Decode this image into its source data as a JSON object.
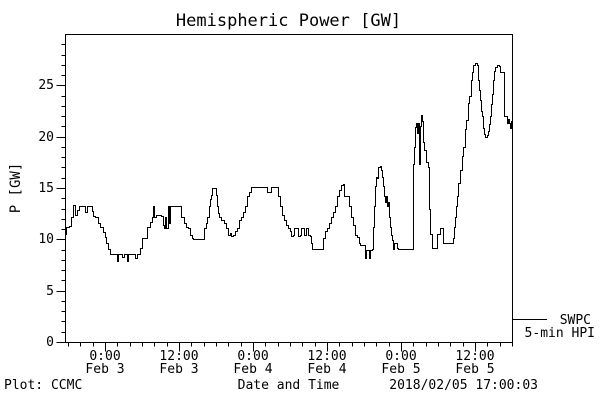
{
  "title": "Hemispheric Power [GW]",
  "footer": {
    "credit": "Plot: CCMC",
    "xlabel": "Date and Time",
    "timestamp": "2018/02/05 17:00:03"
  },
  "legend": {
    "source": "SWPC",
    "product": "5-min HPI"
  },
  "colors": {
    "line": "#000000",
    "frame": "#000000",
    "background": "#ffffff"
  },
  "chart_data": {
    "type": "line",
    "step_interpolation": true,
    "title": "Hemispheric Power [GW]",
    "xlabel": "Date and Time",
    "ylabel": "P [GW]",
    "x_units": "hours relative to 2018 Feb 3 00:00",
    "xlim": [
      -6.5,
      66
    ],
    "ylim": [
      0,
      30
    ],
    "grid": false,
    "legend_position": "right-outside-bottom",
    "yticks": {
      "major_values": [
        0,
        5,
        10,
        15,
        20,
        25
      ],
      "minor_step": 1
    },
    "xticks": {
      "minor_step_hours": 2,
      "major": [
        {
          "t": 0,
          "time": "0:00",
          "date": "Feb 3"
        },
        {
          "t": 12,
          "time": "12:00",
          "date": "Feb 3"
        },
        {
          "t": 24,
          "time": "0:00",
          "date": "Feb 4"
        },
        {
          "t": 36,
          "time": "12:00",
          "date": "Feb 4"
        },
        {
          "t": 48,
          "time": "0:00",
          "date": "Feb 5"
        },
        {
          "t": 60,
          "time": "12:00",
          "date": "Feb 5"
        }
      ]
    },
    "series": [
      {
        "name": "SWPC 5-min HPI",
        "color": "#000000",
        "points": [
          [
            -6.5,
            10.5
          ],
          [
            -6.3,
            11.2
          ],
          [
            -5.8,
            11.3
          ],
          [
            -5.5,
            12.2
          ],
          [
            -5.2,
            13.3
          ],
          [
            -4.9,
            12.4
          ],
          [
            -4.5,
            12.9
          ],
          [
            -4.2,
            13.2
          ],
          [
            -3.2,
            12.7
          ],
          [
            -3.0,
            13.2
          ],
          [
            -2.1,
            12.8
          ],
          [
            -1.9,
            12.3
          ],
          [
            -1.6,
            12.2
          ],
          [
            -1.1,
            11.6
          ],
          [
            -0.8,
            11.2
          ],
          [
            -0.3,
            10.7
          ],
          [
            0,
            10.2
          ],
          [
            0.2,
            9.6
          ],
          [
            0.5,
            9.1
          ],
          [
            0.8,
            8.6
          ],
          [
            1.9,
            7.9
          ],
          [
            2.1,
            8.6
          ],
          [
            2.8,
            8.3
          ],
          [
            3.1,
            8.6
          ],
          [
            3.6,
            7.9
          ],
          [
            3.7,
            8.6
          ],
          [
            4.9,
            8.2
          ],
          [
            5.2,
            8.6
          ],
          [
            5.7,
            9.2
          ],
          [
            6.0,
            10.1
          ],
          [
            6.6,
            10.1
          ],
          [
            6.8,
            11.2
          ],
          [
            7.3,
            11.7
          ],
          [
            7.6,
            12.2
          ],
          [
            7.8,
            13.2
          ],
          [
            7.9,
            12.2
          ],
          [
            8.3,
            12.4
          ],
          [
            9.1,
            12.3
          ],
          [
            9.4,
            11.4
          ],
          [
            9.6,
            11.1
          ],
          [
            9.7,
            12.2
          ],
          [
            9.9,
            11.1
          ],
          [
            10.2,
            13.2
          ],
          [
            10.4,
            11.6
          ],
          [
            10.5,
            13.2
          ],
          [
            11.4,
            13.2
          ],
          [
            12.3,
            12.2
          ],
          [
            12.8,
            11.6
          ],
          [
            13.1,
            11.2
          ],
          [
            13.5,
            11.1
          ],
          [
            13.8,
            10.4
          ],
          [
            14.1,
            10.1
          ],
          [
            14.3,
            10.0
          ],
          [
            15.9,
            10.0
          ],
          [
            16.1,
            11.1
          ],
          [
            16.4,
            11.6
          ],
          [
            16.5,
            12.2
          ],
          [
            16.9,
            13.2
          ],
          [
            17.0,
            13.9
          ],
          [
            17.2,
            14.3
          ],
          [
            17.4,
            15.0
          ],
          [
            17.8,
            15.0
          ],
          [
            18.0,
            14.3
          ],
          [
            18.2,
            13.2
          ],
          [
            18.3,
            12.6
          ],
          [
            18.5,
            12.2
          ],
          [
            18.8,
            11.9
          ],
          [
            19.3,
            11.6
          ],
          [
            19.6,
            11.1
          ],
          [
            19.9,
            10.4
          ],
          [
            20.3,
            10.6
          ],
          [
            20.4,
            10.3
          ],
          [
            20.8,
            10.4
          ],
          [
            21.1,
            10.8
          ],
          [
            21.4,
            11.1
          ],
          [
            21.7,
            11.9
          ],
          [
            22.1,
            12.2
          ],
          [
            22.4,
            12.7
          ],
          [
            22.7,
            13.2
          ],
          [
            23.0,
            14.2
          ],
          [
            23.4,
            14.6
          ],
          [
            23.7,
            15.1
          ],
          [
            26.1,
            15.1
          ],
          [
            26.3,
            14.6
          ],
          [
            26.8,
            14.6
          ],
          [
            26.9,
            15.1
          ],
          [
            27.9,
            15.1
          ],
          [
            28.1,
            14.2
          ],
          [
            28.4,
            13.2
          ],
          [
            28.7,
            12.4
          ],
          [
            29.0,
            11.9
          ],
          [
            29.4,
            11.4
          ],
          [
            29.7,
            11.1
          ],
          [
            30.0,
            10.8
          ],
          [
            30.2,
            10.3
          ],
          [
            30.5,
            10.4
          ],
          [
            30.6,
            11.1
          ],
          [
            31.1,
            11.1
          ],
          [
            31.3,
            10.3
          ],
          [
            31.6,
            10.4
          ],
          [
            31.8,
            11.1
          ],
          [
            32.1,
            11.1
          ],
          [
            32.3,
            10.4
          ],
          [
            32.6,
            11.1
          ],
          [
            32.9,
            10.4
          ],
          [
            33.2,
            10.3
          ],
          [
            33.4,
            9.6
          ],
          [
            33.6,
            9.1
          ],
          [
            35.2,
            9.1
          ],
          [
            35.4,
            10.1
          ],
          [
            35.7,
            10.8
          ],
          [
            36.0,
            11.1
          ],
          [
            36.3,
            11.6
          ],
          [
            36.6,
            12.2
          ],
          [
            37.0,
            12.7
          ],
          [
            37.3,
            13.2
          ],
          [
            37.6,
            14.2
          ],
          [
            37.9,
            14.8
          ],
          [
            38.3,
            15.3
          ],
          [
            38.6,
            15.4
          ],
          [
            38.8,
            14.2
          ],
          [
            39.2,
            14.2
          ],
          [
            39.6,
            13.2
          ],
          [
            39.9,
            12.2
          ],
          [
            40.2,
            11.4
          ],
          [
            40.5,
            10.4
          ],
          [
            40.9,
            10.2
          ],
          [
            41.2,
            9.6
          ],
          [
            41.3,
            9.4
          ],
          [
            42.0,
            9.4
          ],
          [
            42.2,
            8.2
          ],
          [
            42.3,
            9.0
          ],
          [
            42.6,
            9.0
          ],
          [
            42.8,
            8.2
          ],
          [
            43.0,
            9.0
          ],
          [
            43.3,
            9.1
          ],
          [
            43.5,
            11.2
          ],
          [
            43.6,
            13.2
          ],
          [
            43.8,
            15.2
          ],
          [
            43.9,
            16.1
          ],
          [
            44.1,
            16.0
          ],
          [
            44.3,
            17.0
          ],
          [
            44.6,
            17.1
          ],
          [
            44.8,
            16.8
          ],
          [
            44.9,
            16.1
          ],
          [
            45.1,
            15.2
          ],
          [
            45.2,
            14.2
          ],
          [
            45.4,
            13.6
          ],
          [
            45.6,
            14.2
          ],
          [
            45.7,
            13.2
          ],
          [
            45.9,
            13.6
          ],
          [
            46.1,
            12.2
          ],
          [
            46.2,
            11.2
          ],
          [
            46.4,
            10.4
          ],
          [
            46.5,
            9.9
          ],
          [
            46.7,
            9.1
          ],
          [
            46.9,
            9.6
          ],
          [
            47.4,
            9.2
          ],
          [
            47.5,
            9.1
          ],
          [
            49.8,
            9.1
          ],
          [
            49.9,
            17.3
          ],
          [
            50.1,
            19.0
          ],
          [
            50.3,
            20.9
          ],
          [
            50.4,
            21.3
          ],
          [
            50.6,
            20.4
          ],
          [
            50.8,
            21.3
          ],
          [
            50.9,
            17.3
          ],
          [
            51.1,
            21.0
          ],
          [
            51.2,
            22.1
          ],
          [
            51.4,
            21.5
          ],
          [
            51.6,
            19.5
          ],
          [
            51.7,
            18.7
          ],
          [
            52.1,
            17.5
          ],
          [
            52.4,
            17.0
          ],
          [
            52.5,
            13.0
          ],
          [
            52.7,
            10.5
          ],
          [
            53.0,
            9.2
          ],
          [
            53.7,
            9.2
          ],
          [
            53.8,
            10.5
          ],
          [
            54.3,
            11.1
          ],
          [
            54.6,
            11.1
          ],
          [
            54.8,
            9.6
          ],
          [
            56.3,
            9.6
          ],
          [
            56.4,
            10.1
          ],
          [
            56.6,
            11.2
          ],
          [
            56.8,
            12.2
          ],
          [
            56.9,
            13.2
          ],
          [
            57.1,
            14.2
          ],
          [
            57.2,
            15.5
          ],
          [
            57.6,
            16.8
          ],
          [
            57.9,
            18.1
          ],
          [
            58.1,
            19.0
          ],
          [
            58.4,
            20.7
          ],
          [
            58.5,
            21.6
          ],
          [
            58.9,
            23.3
          ],
          [
            59.0,
            24.0
          ],
          [
            59.4,
            25.5
          ],
          [
            59.5,
            26.3
          ],
          [
            59.7,
            27.0
          ],
          [
            60.0,
            27.2
          ],
          [
            60.3,
            27.0
          ],
          [
            60.5,
            25.5
          ],
          [
            60.6,
            24.5
          ],
          [
            60.8,
            23.6
          ],
          [
            61.0,
            22.5
          ],
          [
            61.1,
            22.0
          ],
          [
            61.3,
            20.8
          ],
          [
            61.5,
            20.3
          ],
          [
            61.6,
            20.0
          ],
          [
            61.9,
            20.2
          ],
          [
            62.1,
            20.6
          ],
          [
            62.3,
            21.2
          ],
          [
            62.4,
            22.0
          ],
          [
            62.6,
            23.2
          ],
          [
            62.8,
            24.2
          ],
          [
            62.9,
            25.5
          ],
          [
            63.1,
            26.4
          ],
          [
            63.2,
            26.8
          ],
          [
            63.6,
            27.0
          ],
          [
            63.9,
            26.9
          ],
          [
            64.1,
            26.3
          ],
          [
            64.5,
            26.3
          ],
          [
            64.7,
            22.0
          ],
          [
            65.0,
            22.0
          ],
          [
            65.2,
            21.3
          ],
          [
            65.3,
            21.7
          ],
          [
            65.5,
            21.3
          ],
          [
            65.7,
            20.8
          ],
          [
            65.8,
            21.5
          ],
          [
            66.0,
            21.3
          ]
        ]
      }
    ]
  }
}
